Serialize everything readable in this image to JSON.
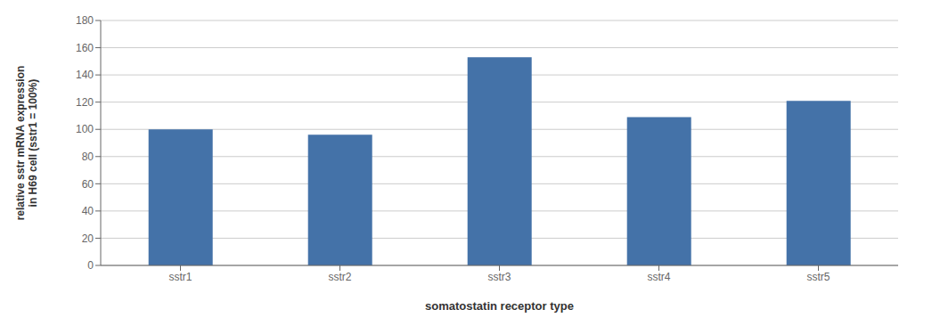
{
  "chart_data": {
    "type": "bar",
    "categories": [
      "sstr1",
      "sstr2",
      "sstr3",
      "sstr4",
      "sstr5"
    ],
    "values": [
      100,
      96,
      153,
      109,
      121
    ],
    "color": "#4472a8",
    "xlabel": "somatostatin receptor type",
    "ylabel": "relative sstr mRNA expression\nin H69 cell (sstr1 = 100%)",
    "ylim": [
      0,
      180
    ],
    "yticks": [
      0,
      20,
      40,
      60,
      80,
      100,
      120,
      140,
      160,
      180
    ],
    "grid": true
  }
}
